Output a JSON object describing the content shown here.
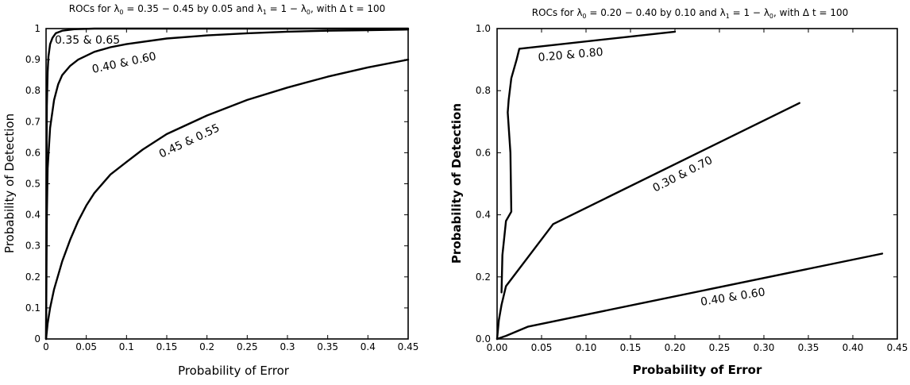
{
  "chart_data": [
    {
      "type": "line",
      "title": {
        "pre": "ROCs for ",
        "lam0": "λ",
        "sub0": "0",
        "mid1": " = 0.35 − 0.45 by 0.05 and ",
        "lam1": "λ",
        "sub1": "1",
        "mid2": " = 1 − ",
        "lam2": "λ",
        "sub2": "0",
        "post": ", with Δ t = 100"
      },
      "xlabel": "Probability of Error",
      "ylabel": "Probability of Detection",
      "xlim": [
        0,
        0.45
      ],
      "ylim": [
        0,
        1
      ],
      "xticks": [
        "0",
        "0.05",
        "0.1",
        "0.15",
        "0.2",
        "0.25",
        "0.3",
        "0.35",
        "0.4",
        "0.45"
      ],
      "yticks": [
        "0",
        "0.1",
        "0.2",
        "0.3",
        "0.4",
        "0.5",
        "0.6",
        "0.7",
        "0.8",
        "0.9",
        "1"
      ],
      "grid": false,
      "series": [
        {
          "name": "0.35 & 0.65",
          "points": [
            [
              0,
              0
            ],
            [
              0.0005,
              0.5
            ],
            [
              0.001,
              0.75
            ],
            [
              0.002,
              0.86
            ],
            [
              0.003,
              0.91
            ],
            [
              0.005,
              0.95
            ],
            [
              0.008,
              0.97
            ],
            [
              0.012,
              0.985
            ],
            [
              0.02,
              0.993
            ],
            [
              0.035,
              0.998
            ],
            [
              0.06,
              1.0
            ],
            [
              0.45,
              1.0
            ]
          ]
        },
        {
          "name": "0.40 & 0.60",
          "points": [
            [
              0,
              0
            ],
            [
              0.001,
              0.4
            ],
            [
              0.002,
              0.55
            ],
            [
              0.005,
              0.68
            ],
            [
              0.01,
              0.77
            ],
            [
              0.015,
              0.82
            ],
            [
              0.02,
              0.85
            ],
            [
              0.03,
              0.88
            ],
            [
              0.04,
              0.9
            ],
            [
              0.06,
              0.925
            ],
            [
              0.08,
              0.94
            ],
            [
              0.1,
              0.95
            ],
            [
              0.15,
              0.968
            ],
            [
              0.2,
              0.978
            ],
            [
              0.25,
              0.985
            ],
            [
              0.3,
              0.99
            ],
            [
              0.35,
              0.993
            ],
            [
              0.4,
              0.995
            ],
            [
              0.45,
              0.997
            ]
          ]
        },
        {
          "name": "0.45 & 0.55",
          "points": [
            [
              0,
              0
            ],
            [
              0.002,
              0.05
            ],
            [
              0.005,
              0.1
            ],
            [
              0.01,
              0.16
            ],
            [
              0.02,
              0.25
            ],
            [
              0.03,
              0.32
            ],
            [
              0.04,
              0.38
            ],
            [
              0.05,
              0.43
            ],
            [
              0.06,
              0.47
            ],
            [
              0.08,
              0.53
            ],
            [
              0.1,
              0.57
            ],
            [
              0.12,
              0.61
            ],
            [
              0.15,
              0.66
            ],
            [
              0.2,
              0.72
            ],
            [
              0.25,
              0.77
            ],
            [
              0.3,
              0.81
            ],
            [
              0.35,
              0.845
            ],
            [
              0.4,
              0.875
            ],
            [
              0.45,
              0.9
            ]
          ]
        }
      ]
    },
    {
      "type": "line",
      "title": {
        "pre": "ROCs for ",
        "lam0": "λ",
        "sub0": "0",
        "mid1": " = 0.20 − 0.40 by 0.10 and ",
        "lam1": "λ",
        "sub1": "1",
        "mid2": " = 1 − ",
        "lam2": "λ",
        "sub2": "0",
        "post": ", with Δ t = 100"
      },
      "xlabel": "Probability of Error",
      "ylabel": "Probability of Detection",
      "xlim": [
        0,
        0.45
      ],
      "ylim": [
        0,
        1
      ],
      "xticks": [
        "0.00",
        "0.05",
        "0.10",
        "0.15",
        "0.20",
        "0.25",
        "0.30",
        "0.35",
        "0.40",
        "0.45"
      ],
      "yticks": [
        "0.0",
        "0.2",
        "0.4",
        "0.6",
        "0.8",
        "1.0"
      ],
      "grid": false,
      "series": [
        {
          "name": "0.20 & 0.80",
          "points": [
            [
              0.005,
              0.15
            ],
            [
              0.006,
              0.27
            ],
            [
              0.01,
              0.38
            ],
            [
              0.016,
              0.41
            ],
            [
              0.015,
              0.6
            ],
            [
              0.012,
              0.73
            ],
            [
              0.013,
              0.77
            ],
            [
              0.016,
              0.84
            ],
            [
              0.022,
              0.9
            ],
            [
              0.025,
              0.935
            ],
            [
              0.2,
              0.99
            ]
          ]
        },
        {
          "name": "0.30 & 0.70",
          "points": [
            [
              0,
              0
            ],
            [
              0.002,
              0.06
            ],
            [
              0.005,
              0.11
            ],
            [
              0.01,
              0.17
            ],
            [
              0.063,
              0.37
            ],
            [
              0.34,
              0.76
            ]
          ]
        },
        {
          "name": "0.40 & 0.60",
          "points": [
            [
              0,
              0
            ],
            [
              0.01,
              0.01
            ],
            [
              0.035,
              0.04
            ],
            [
              0.433,
              0.275
            ]
          ]
        }
      ]
    }
  ]
}
